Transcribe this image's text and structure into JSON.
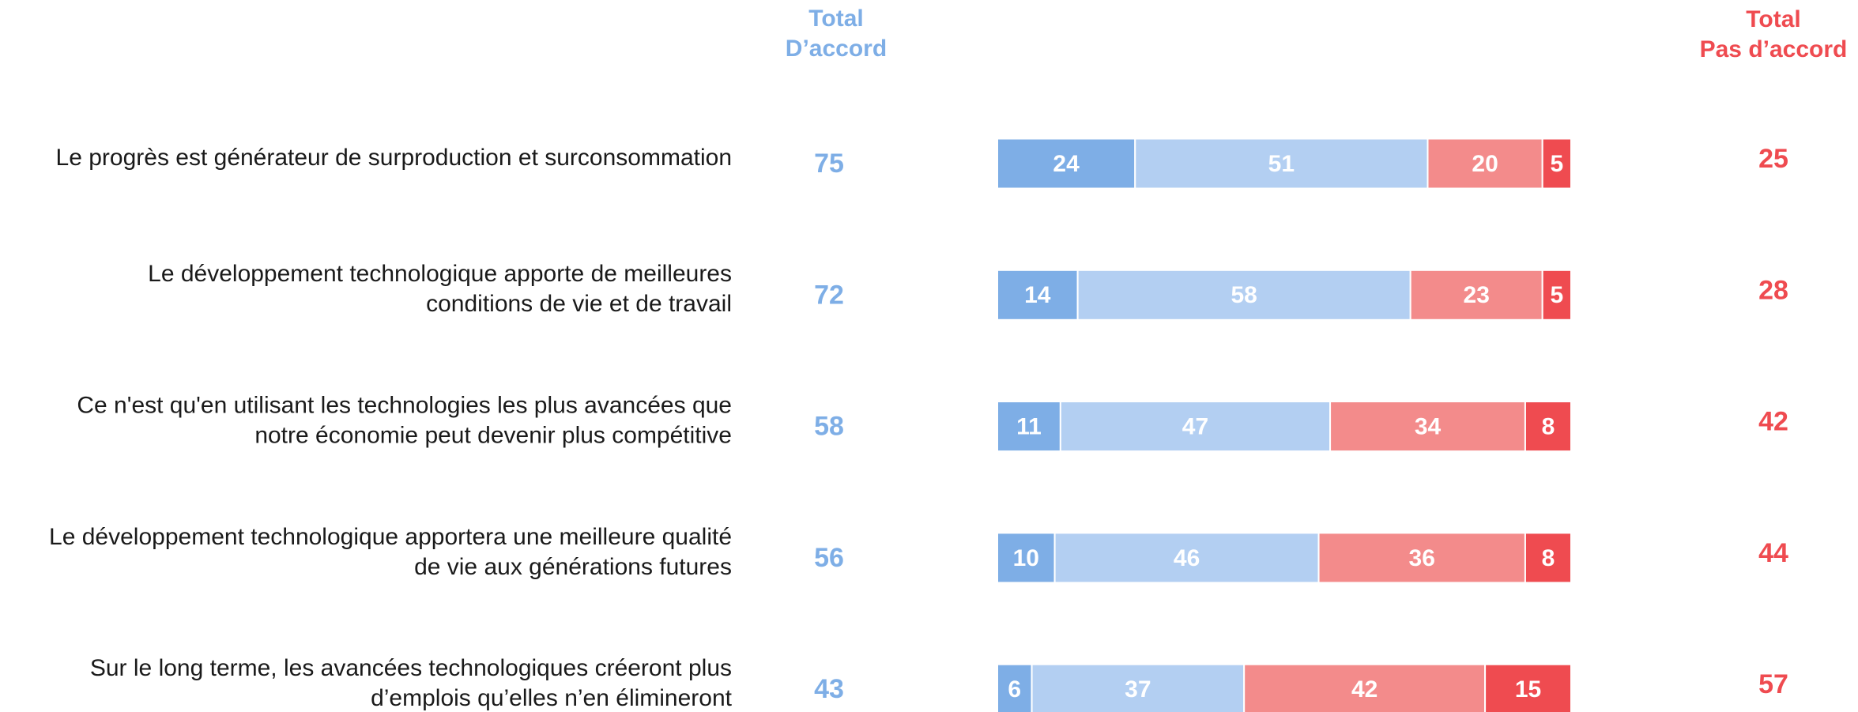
{
  "chart_data": {
    "type": "stacked_bar",
    "header_agree": [
      "Total",
      "D’accord"
    ],
    "header_disagree": [
      "Total",
      "Pas d’accord"
    ],
    "header_agree_color": "#7eaee6",
    "header_disagree_color": "#ef4b50",
    "categories": [
      [
        "Le progrès est générateur de surproduction et surconsommation"
      ],
      [
        "Le développement technologique apporte de meilleures",
        "conditions de vie et de travail"
      ],
      [
        "Ce n'est qu'en utilisant les technologies les plus avancées que",
        "notre économie peut devenir plus compétitive"
      ],
      [
        "Le développement technologique apportera une meilleure qualité",
        "de vie aux générations futures"
      ],
      [
        "Sur le long terme, les avancées technologiques créeront plus",
        "d’emplois qu’elles n’en élimineront"
      ]
    ],
    "total_agree": [
      75,
      72,
      58,
      56,
      43
    ],
    "total_disagree": [
      25,
      28,
      42,
      44,
      57
    ],
    "series": [
      {
        "color": "#7eaee6",
        "values": [
          24,
          14,
          11,
          10,
          6
        ]
      },
      {
        "color": "#b3cff2",
        "values": [
          51,
          58,
          47,
          46,
          37
        ]
      },
      {
        "color": "#f38b8b",
        "values": [
          20,
          23,
          34,
          36,
          42
        ]
      },
      {
        "color": "#ef4b50",
        "values": [
          5,
          5,
          8,
          8,
          15
        ]
      }
    ],
    "xlim": [
      0,
      100
    ]
  }
}
